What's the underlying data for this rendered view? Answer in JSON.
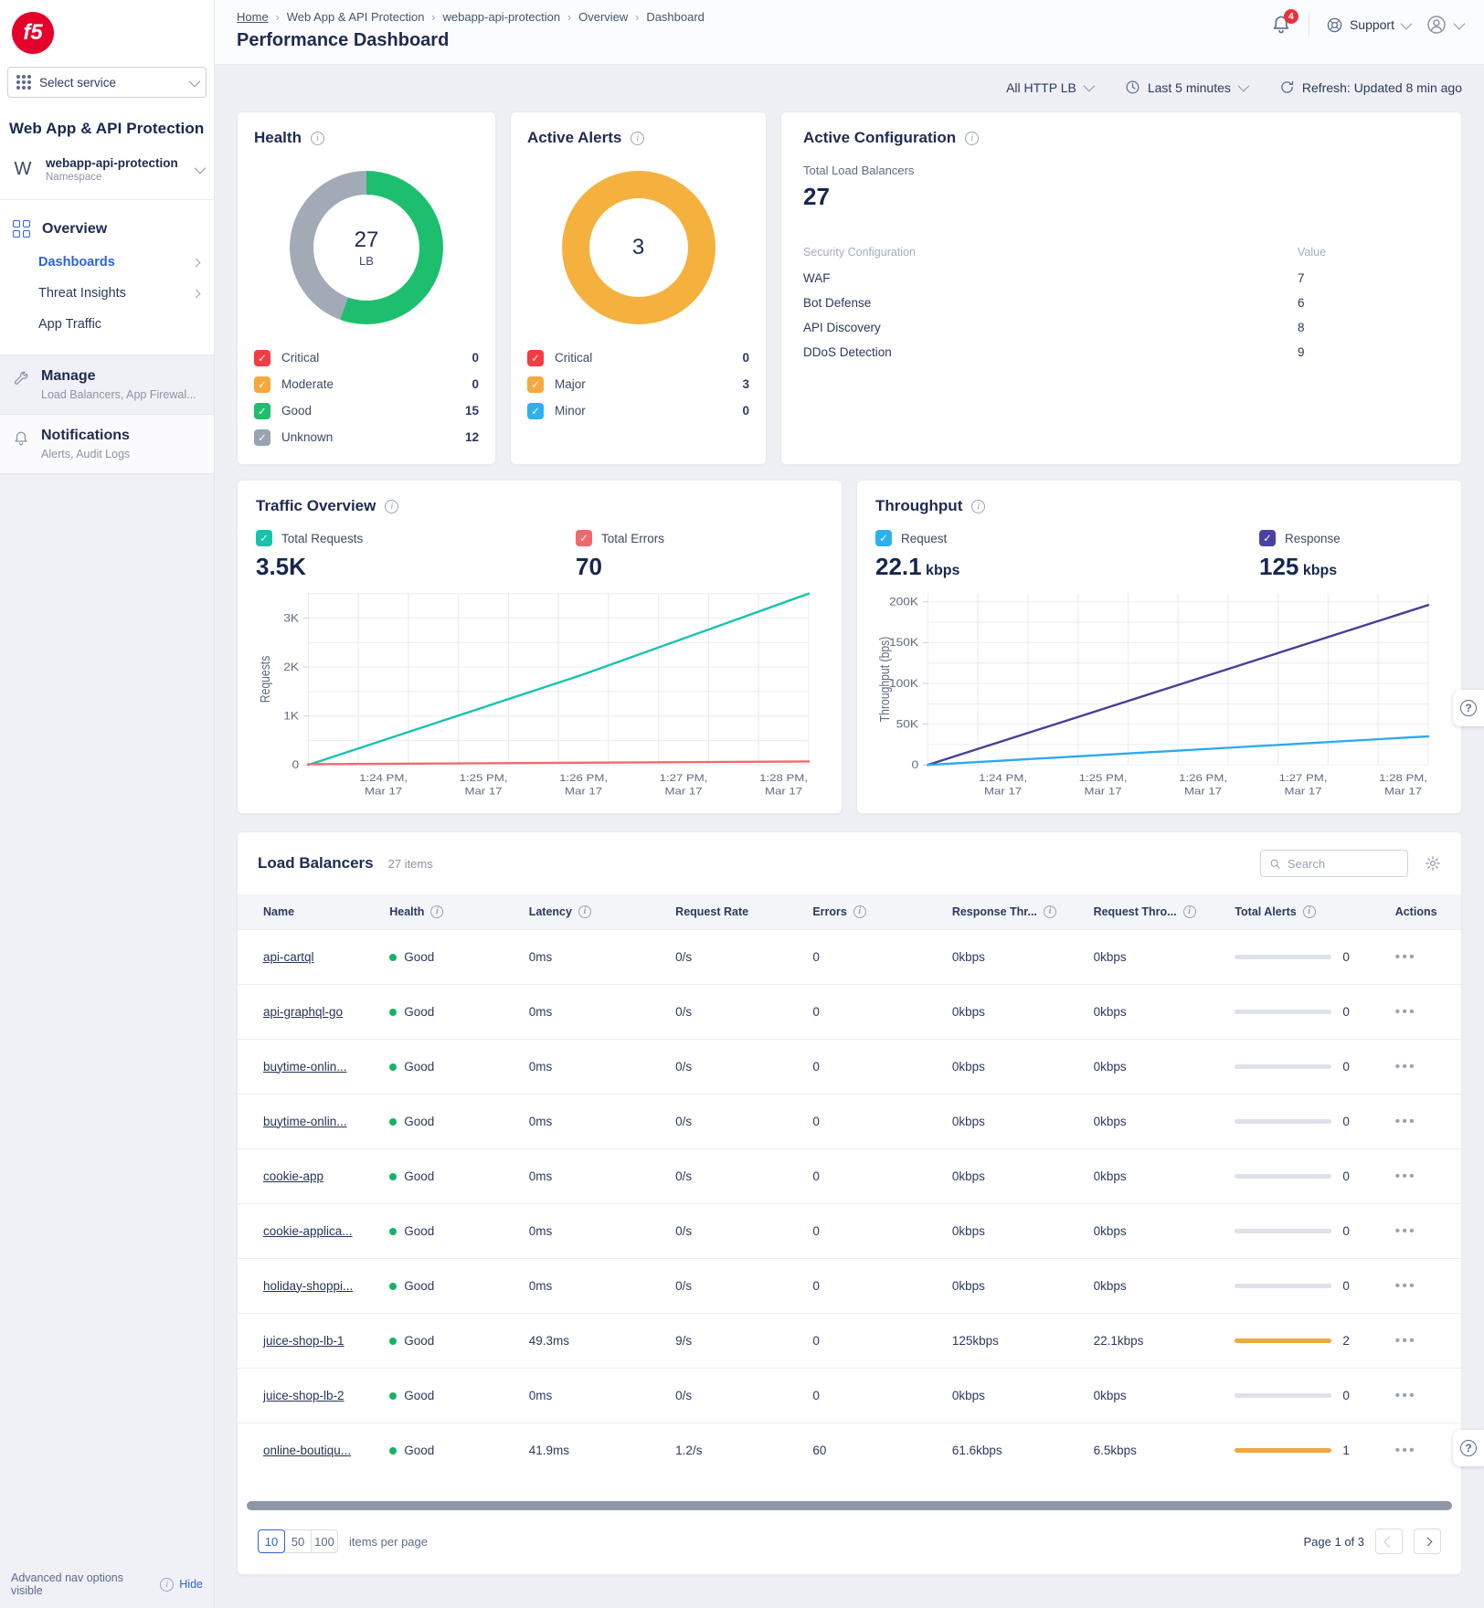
{
  "header": {
    "breadcrumb": [
      "Home",
      "Web App & API Protection",
      "webapp-api-protection",
      "Overview",
      "Dashboard"
    ],
    "title": "Performance Dashboard",
    "notification_count": "4",
    "support_label": "Support"
  },
  "toolbar": {
    "lb_filter": "All HTTP LB",
    "time_range": "Last 5 minutes",
    "refresh_label": "Refresh: Updated 8 min ago"
  },
  "sidebar": {
    "logo_text": "f5",
    "select_service_label": "Select service",
    "product_title": "Web App & API Protection",
    "namespace": {
      "initial": "W",
      "name": "webapp-api-protection",
      "type": "Namespace"
    },
    "nav": {
      "overview_label": "Overview",
      "items": [
        {
          "label": "Dashboards",
          "active": true,
          "chevron": true
        },
        {
          "label": "Threat Insights",
          "active": false,
          "chevron": true
        },
        {
          "label": "App Traffic",
          "active": false,
          "chevron": false
        }
      ]
    },
    "sections": [
      {
        "title": "Manage",
        "subtitle": "Load Balancers, App Firewal...",
        "icon": "wrench-icon"
      },
      {
        "title": "Notifications",
        "subtitle": "Alerts, Audit Logs",
        "icon": "bell-icon"
      }
    ],
    "footer": {
      "text": "Advanced nav options visible",
      "action": "Hide"
    }
  },
  "cards": {
    "health": {
      "title": "Health",
      "center_value": "27",
      "center_label": "LB",
      "legend": [
        {
          "label": "Critical",
          "value": "0",
          "color": "#f23d43"
        },
        {
          "label": "Moderate",
          "value": "0",
          "color": "#f5a93c"
        },
        {
          "label": "Good",
          "value": "15",
          "color": "#1cbf6b"
        },
        {
          "label": "Unknown",
          "value": "12",
          "color": "#9aa3b0"
        }
      ],
      "donut_segments": [
        {
          "color": "#1dbf6e",
          "value": 15
        },
        {
          "color": "#a2aab6",
          "value": 12
        }
      ]
    },
    "active_alerts": {
      "title": "Active Alerts",
      "center_value": "3",
      "legend": [
        {
          "label": "Critical",
          "value": "0",
          "color": "#f23d43"
        },
        {
          "label": "Major",
          "value": "3",
          "color": "#f5a93c"
        },
        {
          "label": "Minor",
          "value": "0",
          "color": "#2bb1f0"
        }
      ],
      "donut_segments": [
        {
          "color": "#f4b13e",
          "value": 3
        }
      ]
    },
    "active_config": {
      "title": "Active Configuration",
      "total_label": "Total Load Balancers",
      "total_value": "27",
      "col1": "Security Configuration",
      "col2": "Value",
      "rows": [
        {
          "label": "WAF",
          "value": "7"
        },
        {
          "label": "Bot Defense",
          "value": "6"
        },
        {
          "label": "API Discovery",
          "value": "8"
        },
        {
          "label": "DDoS Detection",
          "value": "9"
        }
      ]
    }
  },
  "chart_data": [
    {
      "type": "line",
      "title": "Traffic Overview",
      "stats": [
        {
          "label": "Total Requests",
          "value": "3.5K",
          "unit": "",
          "color": "#15c3ac"
        },
        {
          "label": "Total Errors",
          "value": "70",
          "unit": "",
          "color": "#f2696d"
        }
      ],
      "xlabel": "",
      "ylabel": "Requests",
      "ylim": [
        0,
        3500
      ],
      "y_grid_step": 500,
      "y_ticks": [
        {
          "v": 0,
          "label": "0"
        },
        {
          "v": 1000,
          "label": "1K"
        },
        {
          "v": 2000,
          "label": "2K"
        },
        {
          "v": 3000,
          "label": "3K"
        }
      ],
      "x_tick_labels": [
        "1:24 PM, Mar 17",
        "1:25 PM, Mar 17",
        "1:26 PM, Mar 17",
        "1:27 PM, Mar 17",
        "1:28 PM, Mar 17"
      ],
      "grid": true,
      "legend_position": "top",
      "series": [
        {
          "name": "Total Requests",
          "color": "#17c3ad",
          "points": [
            [
              0,
              0
            ],
            [
              0.55,
              1850
            ],
            [
              1,
              3500
            ]
          ]
        },
        {
          "name": "Total Errors",
          "color": "#f2686c",
          "points": [
            [
              0,
              15
            ],
            [
              1,
              70
            ]
          ]
        }
      ]
    },
    {
      "type": "line",
      "title": "Throughput",
      "stats": [
        {
          "label": "Request",
          "value": "22.1",
          "unit": "kbps",
          "color": "#2bb1f0"
        },
        {
          "label": "Response",
          "value": "125",
          "unit": "kbps",
          "color": "#4a41a1"
        }
      ],
      "xlabel": "",
      "ylabel": "Throughput (bps)",
      "ylim": [
        0,
        210000
      ],
      "y_grid_step": 25000,
      "y_ticks": [
        {
          "v": 0,
          "label": "0"
        },
        {
          "v": 50000,
          "label": "50K"
        },
        {
          "v": 100000,
          "label": "100K"
        },
        {
          "v": 150000,
          "label": "150K"
        },
        {
          "v": 200000,
          "label": "200K"
        }
      ],
      "x_tick_labels": [
        "1:24 PM, Mar 17",
        "1:25 PM, Mar 17",
        "1:26 PM, Mar 17",
        "1:27 PM, Mar 17",
        "1:28 PM, Mar 17"
      ],
      "grid": true,
      "legend_position": "top",
      "series": [
        {
          "name": "Response",
          "color": "#463f99",
          "points": [
            [
              0,
              0
            ],
            [
              1,
              196000
            ]
          ]
        },
        {
          "name": "Request",
          "color": "#2aabec",
          "points": [
            [
              0,
              0
            ],
            [
              1,
              35000
            ]
          ]
        }
      ]
    }
  ],
  "lb_table": {
    "title": "Load Balancers",
    "items_count": "27 items",
    "search_placeholder": "Search",
    "columns": [
      {
        "label": "Name",
        "info": false
      },
      {
        "label": "Health",
        "info": true
      },
      {
        "label": "Latency",
        "info": true
      },
      {
        "label": "Request Rate",
        "info": false
      },
      {
        "label": "Errors",
        "info": true
      },
      {
        "label": "Response Thr...",
        "info": true
      },
      {
        "label": "Request Thro...",
        "info": true
      },
      {
        "label": "Total Alerts",
        "info": true
      },
      {
        "label": "Actions",
        "info": false
      }
    ],
    "rows": [
      {
        "name": "api-cartql",
        "health": "Good",
        "latency": "0ms",
        "request_rate": "0/s",
        "errors": "0",
        "response_throughput": "0kbps",
        "request_throughput": "0kbps",
        "alerts": 0
      },
      {
        "name": "api-graphql-go",
        "health": "Good",
        "latency": "0ms",
        "request_rate": "0/s",
        "errors": "0",
        "response_throughput": "0kbps",
        "request_throughput": "0kbps",
        "alerts": 0
      },
      {
        "name": "buytime-onlin...",
        "health": "Good",
        "latency": "0ms",
        "request_rate": "0/s",
        "errors": "0",
        "response_throughput": "0kbps",
        "request_throughput": "0kbps",
        "alerts": 0
      },
      {
        "name": "buytime-onlin...",
        "health": "Good",
        "latency": "0ms",
        "request_rate": "0/s",
        "errors": "0",
        "response_throughput": "0kbps",
        "request_throughput": "0kbps",
        "alerts": 0
      },
      {
        "name": "cookie-app",
        "health": "Good",
        "latency": "0ms",
        "request_rate": "0/s",
        "errors": "0",
        "response_throughput": "0kbps",
        "request_throughput": "0kbps",
        "alerts": 0
      },
      {
        "name": "cookie-applica...",
        "health": "Good",
        "latency": "0ms",
        "request_rate": "0/s",
        "errors": "0",
        "response_throughput": "0kbps",
        "request_throughput": "0kbps",
        "alerts": 0
      },
      {
        "name": "holiday-shoppi...",
        "health": "Good",
        "latency": "0ms",
        "request_rate": "0/s",
        "errors": "0",
        "response_throughput": "0kbps",
        "request_throughput": "0kbps",
        "alerts": 0
      },
      {
        "name": "juice-shop-lb-1",
        "health": "Good",
        "latency": "49.3ms",
        "request_rate": "9/s",
        "errors": "0",
        "response_throughput": "125kbps",
        "request_throughput": "22.1kbps",
        "alerts": 2
      },
      {
        "name": "juice-shop-lb-2",
        "health": "Good",
        "latency": "0ms",
        "request_rate": "0/s",
        "errors": "0",
        "response_throughput": "0kbps",
        "request_throughput": "0kbps",
        "alerts": 0
      },
      {
        "name": "online-boutiqu...",
        "health": "Good",
        "latency": "41.9ms",
        "request_rate": "1.2/s",
        "errors": "60",
        "response_throughput": "61.6kbps",
        "request_throughput": "6.5kbps",
        "alerts": 1
      }
    ],
    "footer": {
      "page_sizes": [
        "10",
        "50",
        "100"
      ],
      "active_size": "10",
      "items_per_page_label": "items per page",
      "page_label": "Page 1 of 3"
    }
  },
  "colors": {
    "accent_blue": "#2f62d9",
    "good_green": "#16b364",
    "alert_orange": "#f0a73c",
    "critical_red": "#f23d43",
    "brand_red": "#e4002b"
  }
}
